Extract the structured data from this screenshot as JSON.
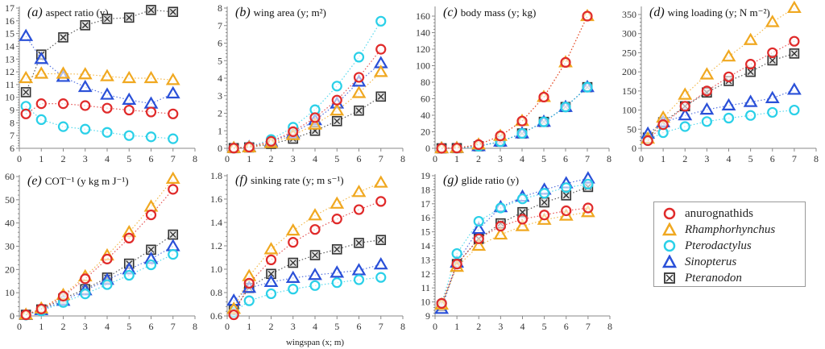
{
  "series_meta": [
    {
      "key": "anurognathids",
      "name": "anurognathids",
      "marker": "circle",
      "color": "#e02a2a",
      "italic": false
    },
    {
      "key": "rhamphorhynchus",
      "name": "Rhamphorhynchus",
      "marker": "triangle",
      "color": "#f0a820",
      "italic": true
    },
    {
      "key": "pterodactylus",
      "name": "Pterodactylus",
      "marker": "circle",
      "color": "#2ad0e8",
      "italic": true
    },
    {
      "key": "sinopterus",
      "name": "Sinopterus",
      "marker": "triangle",
      "color": "#2a50d8",
      "italic": true
    },
    {
      "key": "pteranodon",
      "name": "Pteranodon",
      "marker": "crossed-square",
      "color": "#333333",
      "italic": true
    }
  ],
  "shared_xlabel": "wingspan (x; m)",
  "chart_data": [
    {
      "id": "a",
      "type": "line",
      "letter": "(a)",
      "title": "aspect ratio (y)",
      "xlabel": "",
      "ylabel": "aspect ratio",
      "xlim": [
        0,
        8
      ],
      "ylim": [
        6,
        17
      ],
      "xticks": [
        0,
        1,
        2,
        3,
        4,
        5,
        6,
        7,
        8
      ],
      "yticks": [
        6,
        7,
        8,
        9,
        10,
        11,
        12,
        13,
        14,
        15,
        16,
        17
      ],
      "x": [
        0.3,
        1,
        2,
        3,
        4,
        5,
        6,
        7
      ],
      "series": [
        {
          "name": "anurognathids",
          "values": [
            8.7,
            9.5,
            9.5,
            9.35,
            9.15,
            9.0,
            8.85,
            8.7
          ]
        },
        {
          "name": "Rhamphorhynchus",
          "values": [
            11.5,
            11.85,
            11.85,
            11.8,
            11.65,
            11.5,
            11.5,
            11.35
          ]
        },
        {
          "name": "Pterodactylus",
          "values": [
            9.3,
            8.25,
            7.7,
            7.5,
            7.25,
            7.0,
            6.9,
            6.75
          ]
        },
        {
          "name": "Sinopterus",
          "values": [
            14.8,
            13.0,
            11.6,
            10.8,
            10.2,
            9.8,
            9.5,
            10.3
          ]
        },
        {
          "name": "Pteranodon",
          "values": [
            10.4,
            13.35,
            14.7,
            15.65,
            16.15,
            16.25,
            16.85,
            16.7
          ]
        }
      ]
    },
    {
      "id": "b",
      "type": "line",
      "letter": "(b)",
      "title": "wing area (y; m²)",
      "xlabel": "",
      "ylabel": "wing area",
      "xlim": [
        0,
        8
      ],
      "ylim": [
        0,
        8
      ],
      "xticks": [
        0,
        1,
        2,
        3,
        4,
        5,
        6,
        7,
        8
      ],
      "yticks": [
        0,
        1,
        2,
        3,
        4,
        5,
        6,
        7,
        8
      ],
      "x": [
        0.3,
        1,
        2,
        3,
        4,
        5,
        6,
        7
      ],
      "series": [
        {
          "name": "anurognathids",
          "values": [
            0.01,
            0.07,
            0.4,
            0.95,
            1.75,
            2.75,
            4.05,
            5.65
          ]
        },
        {
          "name": "Rhamphorhynchus",
          "values": [
            0.01,
            0.05,
            0.3,
            0.75,
            1.35,
            2.15,
            3.15,
            4.35
          ]
        },
        {
          "name": "Pterodactylus",
          "values": [
            0.01,
            0.09,
            0.5,
            1.2,
            2.2,
            3.55,
            5.2,
            7.25
          ]
        },
        {
          "name": "Sinopterus",
          "values": [
            0.01,
            0.07,
            0.38,
            0.85,
            1.6,
            2.55,
            3.8,
            4.85
          ]
        },
        {
          "name": "Pteranodon",
          "values": [
            0.01,
            0.05,
            0.25,
            0.55,
            1.0,
            1.55,
            2.15,
            2.95
          ]
        }
      ]
    },
    {
      "id": "c",
      "type": "line",
      "letter": "(c)",
      "title": "body mass (y; kg)",
      "xlabel": "",
      "ylabel": "body mass",
      "xlim": [
        0,
        8
      ],
      "ylim": [
        0,
        170
      ],
      "xticks": [
        0,
        1,
        2,
        3,
        4,
        5,
        6,
        7,
        8
      ],
      "yticks": [
        0,
        20,
        40,
        60,
        80,
        100,
        120,
        140,
        160
      ],
      "x": [
        0.3,
        1,
        2,
        3,
        4,
        5,
        6,
        7
      ],
      "series": [
        {
          "name": "anurognathids",
          "values": [
            0.0,
            0.3,
            4.5,
            15,
            33,
            62,
            104,
            160
          ]
        },
        {
          "name": "Rhamphorhynchus",
          "values": [
            0.0,
            0.3,
            4.5,
            15,
            33,
            62,
            104,
            160
          ]
        },
        {
          "name": "Pterodactylus",
          "values": [
            0.0,
            0.2,
            2.5,
            8,
            18,
            32,
            50,
            74
          ]
        },
        {
          "name": "Sinopterus",
          "values": [
            0.0,
            0.2,
            2.5,
            8,
            18,
            32,
            50,
            74
          ]
        },
        {
          "name": "Pteranodon",
          "values": [
            0.0,
            0.2,
            2.5,
            8,
            18,
            32,
            50,
            74
          ]
        }
      ]
    },
    {
      "id": "d",
      "type": "line",
      "letter": "(d)",
      "title": "wing loading (y; N m⁻²)",
      "xlabel": "",
      "ylabel": "wing loading",
      "xlim": [
        0,
        8
      ],
      "ylim": [
        0,
        370
      ],
      "xticks": [
        0,
        1,
        2,
        3,
        4,
        5,
        6,
        7,
        8
      ],
      "yticks": [
        0,
        50,
        100,
        150,
        200,
        250,
        300,
        350
      ],
      "x": [
        0.3,
        1,
        2,
        3,
        4,
        5,
        6,
        7
      ],
      "series": [
        {
          "name": "anurognathids",
          "values": [
            20,
            62,
            110,
            150,
            187,
            220,
            250,
            280
          ]
        },
        {
          "name": "Rhamphorhynchus",
          "values": [
            25,
            80,
            140,
            193,
            240,
            283,
            330,
            367
          ]
        },
        {
          "name": "Pterodactylus",
          "values": [
            22,
            41,
            57,
            70,
            79,
            86,
            94,
            100
          ]
        },
        {
          "name": "Sinopterus",
          "values": [
            38,
            68,
            86,
            101,
            112,
            121,
            131,
            153
          ]
        },
        {
          "name": "Pteranodon",
          "values": [
            28,
            68,
            110,
            146,
            176,
            200,
            230,
            248
          ]
        }
      ]
    },
    {
      "id": "e",
      "type": "line",
      "letter": "(e)",
      "title": "COT⁻¹ (y kg m J⁻¹)",
      "xlabel": "",
      "ylabel": "COT⁻¹",
      "xlim": [
        0,
        8
      ],
      "ylim": [
        0,
        60
      ],
      "xticks": [
        0,
        1,
        2,
        3,
        4,
        5,
        6,
        7,
        8
      ],
      "yticks": [
        0,
        10,
        20,
        30,
        40,
        50,
        60
      ],
      "x": [
        0.3,
        1,
        2,
        3,
        4,
        5,
        6,
        7
      ],
      "series": [
        {
          "name": "anurognathids",
          "values": [
            0.5,
            3,
            8.5,
            16,
            24.5,
            33.5,
            43.5,
            54.5
          ]
        },
        {
          "name": "Rhamphorhynchus",
          "values": [
            0.5,
            3.2,
            9,
            17,
            26,
            36,
            47,
            59
          ]
        },
        {
          "name": "Pterodactylus",
          "values": [
            0.4,
            2.2,
            5.8,
            9.5,
            13.5,
            17.5,
            22,
            26.5
          ]
        },
        {
          "name": "Sinopterus",
          "values": [
            0.4,
            2.5,
            6.5,
            11,
            15.5,
            20,
            24.5,
            30
          ]
        },
        {
          "name": "Pteranodon",
          "values": [
            0.5,
            2.8,
            7.5,
            11.5,
            16.5,
            22.5,
            28.5,
            35
          ]
        }
      ]
    },
    {
      "id": "f",
      "type": "line",
      "letter": "(f)",
      "title": "sinking  rate (y; m s⁻¹)",
      "xlabel": "wingspan (x; m)",
      "ylabel": "sinking rate",
      "xlim": [
        0,
        8
      ],
      "ylim": [
        0.6,
        1.8
      ],
      "xticks": [
        0,
        1,
        2,
        3,
        4,
        5,
        6,
        7,
        8
      ],
      "yticks": [
        0.6,
        0.8,
        1.0,
        1.2,
        1.4,
        1.6,
        1.8
      ],
      "x": [
        0.3,
        1,
        2,
        3,
        4,
        5,
        6,
        7
      ],
      "series": [
        {
          "name": "anurognathids",
          "values": [
            0.61,
            0.88,
            1.08,
            1.23,
            1.34,
            1.43,
            1.51,
            1.58
          ]
        },
        {
          "name": "Rhamphorhynchus",
          "values": [
            0.66,
            0.94,
            1.17,
            1.33,
            1.46,
            1.56,
            1.66,
            1.74
          ]
        },
        {
          "name": "Pterodactylus",
          "values": [
            0.63,
            0.73,
            0.79,
            0.83,
            0.86,
            0.885,
            0.91,
            0.93
          ]
        },
        {
          "name": "Sinopterus",
          "values": [
            0.73,
            0.84,
            0.89,
            0.925,
            0.95,
            0.97,
            0.99,
            1.04
          ]
        },
        {
          "name": "Pteranodon",
          "values": [
            0.65,
            0.84,
            0.96,
            1.055,
            1.12,
            1.17,
            1.225,
            1.25
          ]
        }
      ]
    },
    {
      "id": "g",
      "type": "line",
      "letter": "(g)",
      "title": "glide ratio (y)",
      "xlabel": "",
      "ylabel": "glide ratio",
      "xlim": [
        0,
        8
      ],
      "ylim": [
        9,
        19
      ],
      "xticks": [
        0,
        1,
        2,
        3,
        4,
        5,
        6,
        7,
        8
      ],
      "yticks": [
        9,
        10,
        11,
        12,
        13,
        14,
        15,
        16,
        17,
        18,
        19
      ],
      "x": [
        0.3,
        1,
        2,
        3,
        4,
        5,
        6,
        7
      ],
      "series": [
        {
          "name": "anurognathids",
          "values": [
            9.9,
            12.7,
            14.5,
            15.4,
            15.9,
            16.2,
            16.5,
            16.7
          ]
        },
        {
          "name": "Rhamphorhynchus",
          "values": [
            9.8,
            12.5,
            14.0,
            14.8,
            15.4,
            15.85,
            16.15,
            16.4
          ]
        },
        {
          "name": "Pterodactylus",
          "values": [
            9.9,
            13.45,
            15.75,
            16.7,
            17.35,
            17.75,
            18.15,
            18.4
          ]
        },
        {
          "name": "Sinopterus",
          "values": [
            9.5,
            12.8,
            15.2,
            16.75,
            17.5,
            18.0,
            18.45,
            18.8
          ]
        },
        {
          "name": "Pteranodon",
          "values": [
            9.7,
            12.7,
            14.5,
            15.6,
            16.4,
            17.1,
            17.6,
            18.2
          ]
        }
      ]
    }
  ],
  "legend": {
    "placement": "bottom-right",
    "items": [
      {
        "label": "anurognathids"
      },
      {
        "label": "Rhamphorhynchus"
      },
      {
        "label": "Pterodactylus"
      },
      {
        "label": "Sinopterus"
      },
      {
        "label": "Pteranodon"
      }
    ]
  }
}
